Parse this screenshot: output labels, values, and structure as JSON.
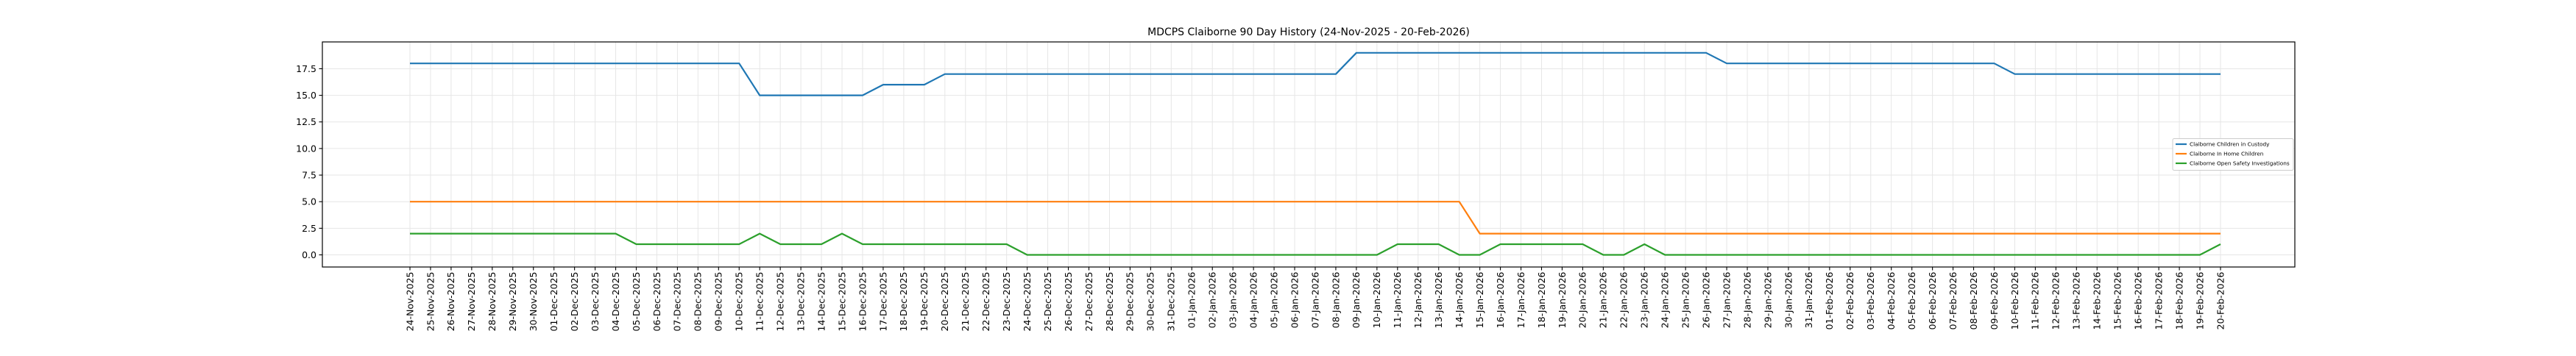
{
  "chart_data": {
    "type": "line",
    "title": "MDCPS Claiborne 90 Day History (24-Nov-2025 - 20-Feb-2026)",
    "xlabel": "",
    "ylabel": "",
    "grid": true,
    "legend_location": "center right",
    "x_label_rotation": 90,
    "ylim": [
      -1.1,
      20.0
    ],
    "yticks": [
      0.0,
      2.5,
      5.0,
      7.5,
      10.0,
      12.5,
      15.0,
      17.5
    ],
    "ytick_labels": [
      "0.0",
      "2.5",
      "5.0",
      "7.5",
      "10.0",
      "12.5",
      "15.0",
      "17.5"
    ],
    "x": [
      "24-Nov-2025",
      "25-Nov-2025",
      "26-Nov-2025",
      "27-Nov-2025",
      "28-Nov-2025",
      "29-Nov-2025",
      "30-Nov-2025",
      "01-Dec-2025",
      "02-Dec-2025",
      "03-Dec-2025",
      "04-Dec-2025",
      "05-Dec-2025",
      "06-Dec-2025",
      "07-Dec-2025",
      "08-Dec-2025",
      "09-Dec-2025",
      "10-Dec-2025",
      "11-Dec-2025",
      "12-Dec-2025",
      "13-Dec-2025",
      "14-Dec-2025",
      "15-Dec-2025",
      "16-Dec-2025",
      "17-Dec-2025",
      "18-Dec-2025",
      "19-Dec-2025",
      "20-Dec-2025",
      "21-Dec-2025",
      "22-Dec-2025",
      "23-Dec-2025",
      "24-Dec-2025",
      "25-Dec-2025",
      "26-Dec-2025",
      "27-Dec-2025",
      "28-Dec-2025",
      "29-Dec-2025",
      "30-Dec-2025",
      "31-Dec-2025",
      "01-Jan-2026",
      "02-Jan-2026",
      "03-Jan-2026",
      "04-Jan-2026",
      "05-Jan-2026",
      "06-Jan-2026",
      "07-Jan-2026",
      "08-Jan-2026",
      "09-Jan-2026",
      "10-Jan-2026",
      "11-Jan-2026",
      "12-Jan-2026",
      "13-Jan-2026",
      "14-Jan-2026",
      "15-Jan-2026",
      "16-Jan-2026",
      "17-Jan-2026",
      "18-Jan-2026",
      "19-Jan-2026",
      "20-Jan-2026",
      "21-Jan-2026",
      "22-Jan-2026",
      "23-Jan-2026",
      "24-Jan-2026",
      "25-Jan-2026",
      "26-Jan-2026",
      "27-Jan-2026",
      "28-Jan-2026",
      "29-Jan-2026",
      "30-Jan-2026",
      "31-Jan-2026",
      "01-Feb-2026",
      "02-Feb-2026",
      "03-Feb-2026",
      "04-Feb-2026",
      "05-Feb-2026",
      "06-Feb-2026",
      "07-Feb-2026",
      "08-Feb-2026",
      "09-Feb-2026",
      "10-Feb-2026",
      "11-Feb-2026",
      "12-Feb-2026",
      "13-Feb-2026",
      "14-Feb-2026",
      "15-Feb-2026",
      "16-Feb-2026",
      "17-Feb-2026",
      "18-Feb-2026",
      "19-Feb-2026",
      "20-Feb-2026"
    ],
    "series": [
      {
        "name": "Claiborne Children in Custody",
        "color": "#1f77b4",
        "values": [
          18,
          18,
          18,
          18,
          18,
          18,
          18,
          18,
          18,
          18,
          18,
          18,
          18,
          18,
          18,
          18,
          18,
          15,
          15,
          15,
          15,
          15,
          15,
          16,
          16,
          16,
          17,
          17,
          17,
          17,
          17,
          17,
          17,
          17,
          17,
          17,
          17,
          17,
          17,
          17,
          17,
          17,
          17,
          17,
          17,
          17,
          19,
          19,
          19,
          19,
          19,
          19,
          19,
          19,
          19,
          19,
          19,
          19,
          19,
          19,
          19,
          19,
          19,
          19,
          18,
          18,
          18,
          18,
          18,
          18,
          18,
          18,
          18,
          18,
          18,
          18,
          18,
          18,
          17,
          17,
          17,
          17,
          17,
          17,
          17,
          17,
          17,
          17,
          17
        ]
      },
      {
        "name": "Claiborne In Home Children",
        "color": "#ff7f0e",
        "values": [
          5,
          5,
          5,
          5,
          5,
          5,
          5,
          5,
          5,
          5,
          5,
          5,
          5,
          5,
          5,
          5,
          5,
          5,
          5,
          5,
          5,
          5,
          5,
          5,
          5,
          5,
          5,
          5,
          5,
          5,
          5,
          5,
          5,
          5,
          5,
          5,
          5,
          5,
          5,
          5,
          5,
          5,
          5,
          5,
          5,
          5,
          5,
          5,
          5,
          5,
          5,
          5,
          2,
          2,
          2,
          2,
          2,
          2,
          2,
          2,
          2,
          2,
          2,
          2,
          2,
          2,
          2,
          2,
          2,
          2,
          2,
          2,
          2,
          2,
          2,
          2,
          2,
          2,
          2,
          2,
          2,
          2,
          2,
          2,
          2,
          2,
          2,
          2,
          2
        ]
      },
      {
        "name": "Claiborne Open Safety Investigations",
        "color": "#2ca02c",
        "values": [
          2,
          2,
          2,
          2,
          2,
          2,
          2,
          2,
          2,
          2,
          2,
          1,
          1,
          1,
          1,
          1,
          1,
          2,
          1,
          1,
          1,
          2,
          1,
          1,
          1,
          1,
          1,
          1,
          1,
          1,
          0,
          0,
          0,
          0,
          0,
          0,
          0,
          0,
          0,
          0,
          0,
          0,
          0,
          0,
          0,
          0,
          0,
          0,
          1,
          1,
          1,
          0,
          0,
          1,
          1,
          1,
          1,
          1,
          0,
          0,
          1,
          0,
          0,
          0,
          0,
          0,
          0,
          0,
          0,
          0,
          0,
          0,
          0,
          0,
          0,
          0,
          0,
          0,
          0,
          0,
          0,
          0,
          0,
          0,
          0,
          0,
          0,
          0,
          1
        ]
      }
    ]
  }
}
